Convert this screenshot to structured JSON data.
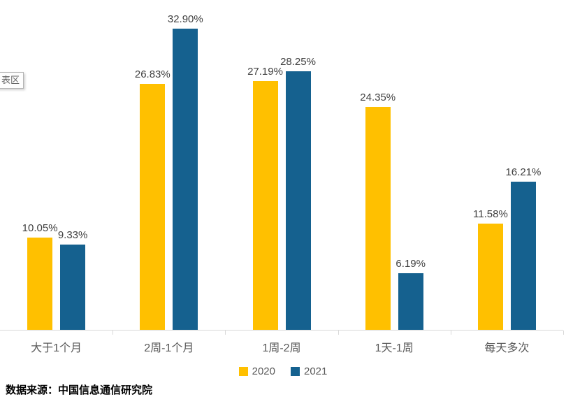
{
  "tooltip": {
    "label": "表区"
  },
  "source": {
    "text": "数据来源：中国信息通信研究院"
  },
  "colors": {
    "axis": "#d9d9d9",
    "category_text": "#595959",
    "value_text": "#404040",
    "background": "#ffffff"
  },
  "chart_data": {
    "type": "bar",
    "title": "",
    "xlabel": "",
    "ylabel": "",
    "categories": [
      "大于1个月",
      "2周-1个月",
      "1周-2周",
      "1天-1周",
      "每天多次"
    ],
    "series": [
      {
        "name": "2020",
        "color": "#FFC000",
        "values": [
          10.05,
          26.83,
          27.19,
          24.35,
          11.58
        ]
      },
      {
        "name": "2021",
        "color": "#15618F",
        "values": [
          9.33,
          32.9,
          28.25,
          6.19,
          16.21
        ]
      }
    ],
    "ylim": [
      0,
      36.1
    ],
    "grid": false,
    "axis_ticks": "between-categories",
    "legend_position": "bottom",
    "value_label_format": "0.00%"
  }
}
